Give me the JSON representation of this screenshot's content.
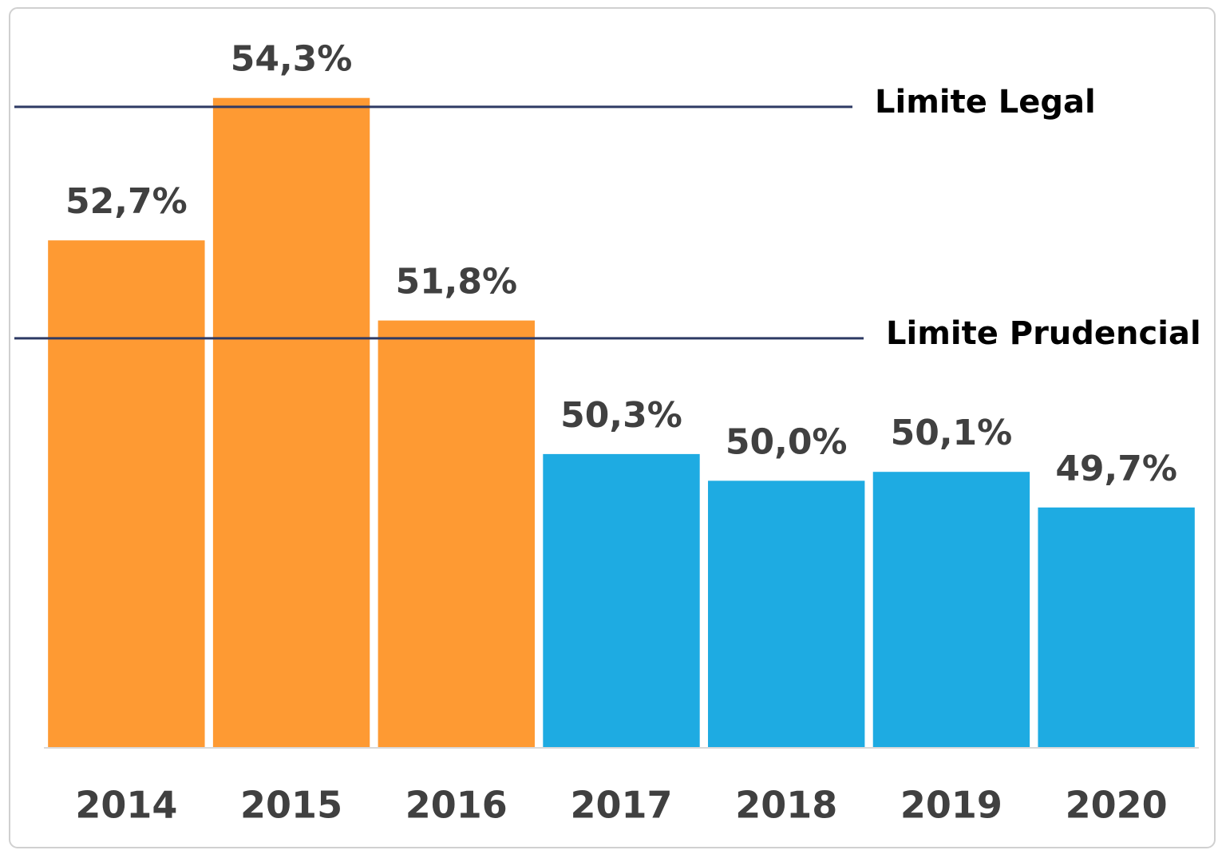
{
  "chart_data": {
    "type": "bar",
    "categories": [
      "2014",
      "2015",
      "2016",
      "2017",
      "2018",
      "2019",
      "2020"
    ],
    "values": [
      52.7,
      54.3,
      51.8,
      50.3,
      50.0,
      50.1,
      49.7
    ],
    "value_labels": [
      "52,7%",
      "54,3%",
      "51,8%",
      "50,3%",
      "50,0%",
      "50,1%",
      "49,7%"
    ],
    "colors": [
      "#fe9a33",
      "#fe9a33",
      "#fe9a33",
      "#1eabe2",
      "#1eabe2",
      "#1eabe2",
      "#1eabe2"
    ],
    "ylim": [
      47,
      55.4
    ],
    "reference_lines": [
      {
        "label": "Limite Legal",
        "value": 54.2,
        "color": "#2e3a64"
      },
      {
        "label": "Limite Prudencial",
        "value": 51.6,
        "color": "#2e3a64"
      }
    ]
  }
}
